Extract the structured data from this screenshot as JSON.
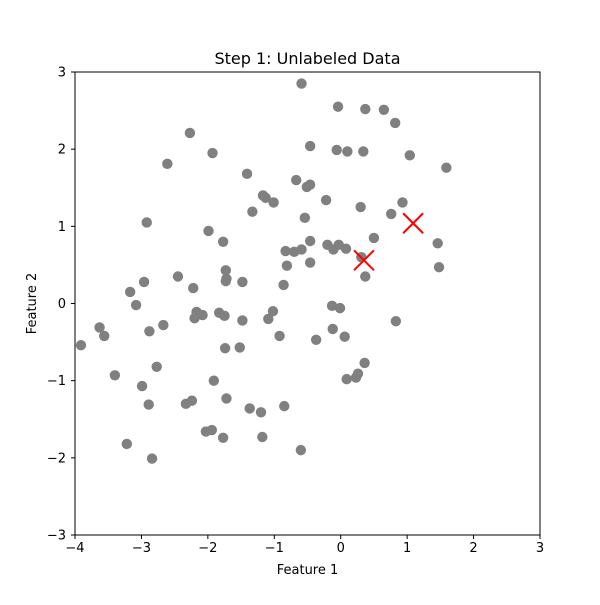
{
  "chart_data": {
    "type": "scatter",
    "title": "Step 1: Unlabeled Data",
    "xlabel": "Feature 1",
    "ylabel": "Feature 2",
    "xlim": [
      -4,
      3
    ],
    "ylim": [
      -3,
      3
    ],
    "xticks": [
      -4,
      -3,
      -2,
      -1,
      0,
      1,
      2,
      3
    ],
    "yticks": [
      -3,
      -2,
      -1,
      0,
      1,
      2,
      3
    ],
    "grid": false,
    "colors": {
      "points": "#808080",
      "centroids": "#ff0000",
      "axes": "#000000",
      "background": "#ffffff"
    },
    "series": [
      {
        "marker": "circle",
        "points": [
          [
            -0.59,
            2.85
          ],
          [
            -0.04,
            2.55
          ],
          [
            0.37,
            2.52
          ],
          [
            0.65,
            2.51
          ],
          [
            0.82,
            2.34
          ],
          [
            -2.27,
            2.21
          ],
          [
            -1.93,
            1.95
          ],
          [
            -2.61,
            1.81
          ],
          [
            -0.46,
            2.04
          ],
          [
            -0.06,
            1.99
          ],
          [
            0.1,
            1.97
          ],
          [
            0.34,
            1.97
          ],
          [
            1.04,
            1.92
          ],
          [
            1.59,
            1.76
          ],
          [
            -1.41,
            1.68
          ],
          [
            -0.67,
            1.6
          ],
          [
            -0.51,
            1.51
          ],
          [
            -0.46,
            1.54
          ],
          [
            -1.17,
            1.4
          ],
          [
            -1.13,
            1.37
          ],
          [
            -1.01,
            1.31
          ],
          [
            -0.22,
            1.34
          ],
          [
            0.3,
            1.25
          ],
          [
            0.93,
            1.31
          ],
          [
            0.76,
            1.16
          ],
          [
            -1.33,
            1.19
          ],
          [
            -0.54,
            1.11
          ],
          [
            -2.92,
            1.05
          ],
          [
            -1.99,
            0.94
          ],
          [
            -1.77,
            0.8
          ],
          [
            -0.46,
            0.81
          ],
          [
            -0.2,
            0.76
          ],
          [
            -0.03,
            0.76
          ],
          [
            0.5,
            0.85
          ],
          [
            1.46,
            0.78
          ],
          [
            -0.83,
            0.68
          ],
          [
            -0.7,
            0.67
          ],
          [
            -0.59,
            0.7
          ],
          [
            -0.11,
            0.7
          ],
          [
            0.08,
            0.71
          ],
          [
            0.31,
            0.6
          ],
          [
            -0.46,
            0.53
          ],
          [
            -0.81,
            0.49
          ],
          [
            1.48,
            0.47
          ],
          [
            -1.73,
            0.43
          ],
          [
            0.37,
            0.35
          ],
          [
            -2.45,
            0.35
          ],
          [
            -1.48,
            0.28
          ],
          [
            -1.73,
            0.29
          ],
          [
            -2.96,
            0.28
          ],
          [
            -0.86,
            0.24
          ],
          [
            -2.22,
            0.2
          ],
          [
            -3.17,
            0.15
          ],
          [
            -1.72,
            0.32
          ],
          [
            -3.08,
            -0.02
          ],
          [
            -0.13,
            -0.03
          ],
          [
            -0.01,
            -0.06
          ],
          [
            -2.17,
            -0.11
          ],
          [
            -2.08,
            -0.15
          ],
          [
            -1.83,
            -0.12
          ],
          [
            -1.75,
            -0.16
          ],
          [
            -2.2,
            -0.19
          ],
          [
            -1.48,
            -0.22
          ],
          [
            -1.09,
            -0.2
          ],
          [
            -1.02,
            -0.1
          ],
          [
            -2.67,
            -0.28
          ],
          [
            -3.63,
            -0.31
          ],
          [
            -2.88,
            -0.36
          ],
          [
            -0.12,
            -0.33
          ],
          [
            -3.56,
            -0.42
          ],
          [
            -0.92,
            -0.42
          ],
          [
            -0.37,
            -0.47
          ],
          [
            0.06,
            -0.43
          ],
          [
            -3.91,
            -0.54
          ],
          [
            -1.74,
            -0.58
          ],
          [
            -1.52,
            -0.57
          ],
          [
            -2.77,
            -0.82
          ],
          [
            0.36,
            -0.77
          ],
          [
            0.83,
            -0.23
          ],
          [
            -3.4,
            -0.93
          ],
          [
            0.09,
            -0.98
          ],
          [
            0.23,
            -0.96
          ],
          [
            0.26,
            -0.91
          ],
          [
            -1.91,
            -1.0
          ],
          [
            -2.99,
            -1.07
          ],
          [
            -1.72,
            -1.23
          ],
          [
            -2.24,
            -1.26
          ],
          [
            -2.33,
            -1.3
          ],
          [
            -2.89,
            -1.31
          ],
          [
            -1.37,
            -1.36
          ],
          [
            -1.2,
            -1.41
          ],
          [
            -0.85,
            -1.33
          ],
          [
            -2.03,
            -1.66
          ],
          [
            -1.94,
            -1.64
          ],
          [
            -1.77,
            -1.74
          ],
          [
            -1.18,
            -1.73
          ],
          [
            -3.22,
            -1.82
          ],
          [
            -0.6,
            -1.9
          ],
          [
            -2.84,
            -2.01
          ]
        ]
      },
      {
        "marker": "x",
        "points": [
          [
            0.35,
            0.56
          ],
          [
            1.09,
            1.04
          ]
        ]
      }
    ]
  }
}
